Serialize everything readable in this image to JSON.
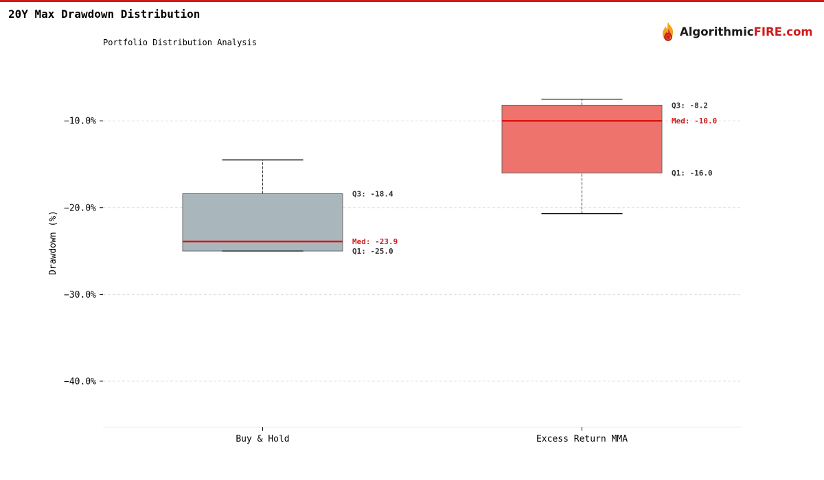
{
  "header": {
    "title": "20Y Max Drawdown Distribution",
    "subtitle": "Portfolio Distribution Analysis"
  },
  "logo": {
    "text_dark": "Algorithmic",
    "text_red": "FIRE.com",
    "icon": "flame-logo-icon"
  },
  "colors": {
    "accent": "#d11a1a",
    "buy_hold_box": "#a9b7bd",
    "mma_box": "#ed736c"
  },
  "chart_data": {
    "type": "box",
    "title": "20Y Max Drawdown Distribution",
    "subtitle": "Portfolio Distribution Analysis",
    "ylabel": "Drawdown (%)",
    "xlabel": "",
    "ylim": [
      -45.3,
      -2.4
    ],
    "yticks": [
      -10,
      -20,
      -30,
      -40
    ],
    "ytick_labels": [
      "−10.0%",
      "−20.0%",
      "−30.0%",
      "−40.0%"
    ],
    "grid": true,
    "categories": [
      "Buy & Hold",
      "Excess Return MMA"
    ],
    "series": [
      {
        "name": "Buy & Hold",
        "whisker_low": -25.0,
        "q1": -25.0,
        "median": -23.9,
        "q3": -18.4,
        "whisker_high": -14.5,
        "color": "#a9b7bd",
        "q3_label": "Q3: -18.4",
        "median_label": "Med: -23.9",
        "q1_label": "Q1: -25.0"
      },
      {
        "name": "Excess Return MMA",
        "whisker_low": -20.7,
        "q1": -16.0,
        "median": -10.0,
        "q3": -8.2,
        "whisker_high": -7.5,
        "color": "#ed736c",
        "q3_label": "Q3: -8.2",
        "median_label": "Med: -10.0",
        "q1_label": "Q1: -16.0"
      }
    ]
  }
}
